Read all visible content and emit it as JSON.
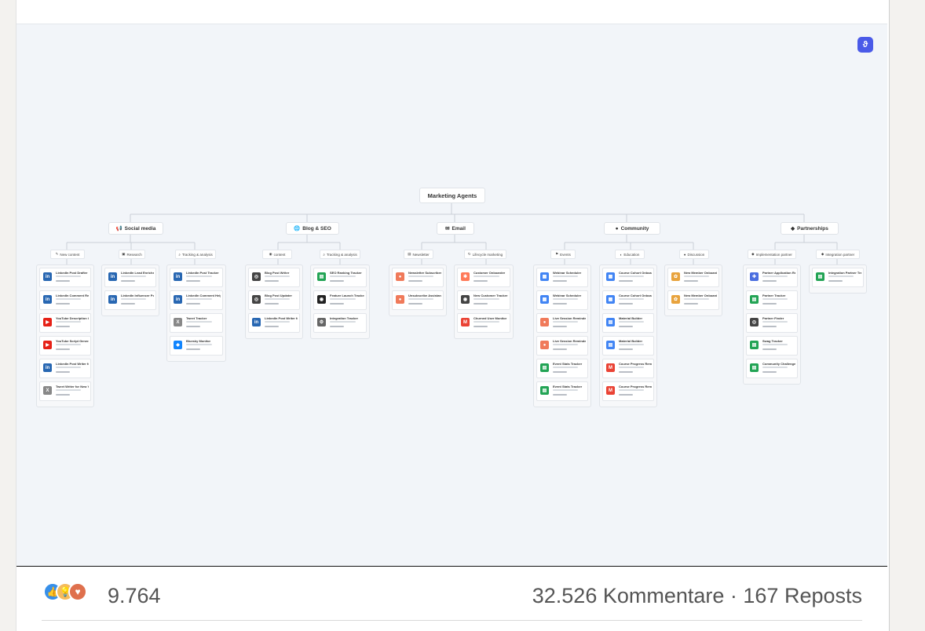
{
  "diagram": {
    "root": "Marketing Agents",
    "categories": [
      {
        "label": "Social media",
        "icon": "megaphone-icon"
      },
      {
        "label": "Blog & SEO",
        "icon": "globe-icon"
      },
      {
        "label": "Email",
        "icon": "mail-icon"
      },
      {
        "label": "Community",
        "icon": "people-icon"
      },
      {
        "label": "Partnerships",
        "icon": "handshake-icon"
      }
    ],
    "subcategories": [
      "New content",
      "Research",
      "Tracking & analysis",
      "content",
      "Tracking & analysis",
      "Newsletter",
      "Lifecycle marketing",
      "Events",
      "Education",
      "Discussion",
      "Implementation partner",
      "Integration partner"
    ],
    "columns": [
      {
        "items": [
          {
            "title": "LinkedIn Post Drafter",
            "color": "#2867b2",
            "glyph": "in"
          },
          {
            "title": "LinkedIn Comment Replier",
            "color": "#2867b2",
            "glyph": "in"
          },
          {
            "title": "YouTube Description Generator",
            "color": "#e62117",
            "glyph": "▶"
          },
          {
            "title": "YouTube Script Generator",
            "color": "#e62117",
            "glyph": "▶"
          },
          {
            "title": "LinkedIn Post Writer for New YouTube Videos",
            "color": "#2867b2",
            "glyph": "in"
          },
          {
            "title": "Tweet Writer for New YouTube Videos",
            "color": "#888888",
            "glyph": "X"
          }
        ]
      },
      {
        "items": [
          {
            "title": "LinkedIn Lead Enricher",
            "color": "#2867b2",
            "glyph": "in"
          },
          {
            "title": "LinkedIn Influencer Post Researcher",
            "color": "#2867b2",
            "glyph": "in"
          }
        ]
      },
      {
        "items": [
          {
            "title": "LinkedIn Post Tracker",
            "color": "#2867b2",
            "glyph": "in"
          },
          {
            "title": "LinkedIn Comment Helper",
            "color": "#2867b2",
            "glyph": "in"
          },
          {
            "title": "Tweet Tracker",
            "color": "#888888",
            "glyph": "X"
          },
          {
            "title": "Bluesky Monitor",
            "color": "#1185fe",
            "glyph": "◆"
          }
        ]
      },
      {
        "items": [
          {
            "title": "Blog Post Writer",
            "color": "#444444",
            "glyph": "◎"
          },
          {
            "title": "Blog Post Updater",
            "color": "#444444",
            "glyph": "◎"
          },
          {
            "title": "LinkedIn Post Writer for New Blog Posts",
            "color": "#2867b2",
            "glyph": "in"
          }
        ]
      },
      {
        "items": [
          {
            "title": "SEO Ranking Tracker",
            "color": "#23a455",
            "glyph": "▤"
          },
          {
            "title": "Feature Launch Tracker",
            "color": "#222222",
            "glyph": "◉"
          },
          {
            "title": "Integration Tracker",
            "color": "#666666",
            "glyph": "⚙"
          }
        ]
      },
      {
        "items": [
          {
            "title": "Newsletter Subscriber",
            "color": "#f07a5a",
            "glyph": "●"
          },
          {
            "title": "Unsubscribe Assistant",
            "color": "#f07a5a",
            "glyph": "●"
          }
        ]
      },
      {
        "items": [
          {
            "title": "Customer Onboarder",
            "color": "#ff7a59",
            "glyph": "✱"
          },
          {
            "title": "New Customer Tracker",
            "color": "#444444",
            "glyph": "◉"
          },
          {
            "title": "Churned User Monitor",
            "color": "#ea4335",
            "glyph": "M"
          }
        ]
      },
      {
        "items": [
          {
            "title": "Webinar Scheduler",
            "color": "#4285f4",
            "glyph": "▦"
          },
          {
            "title": "Webinar Scheduler",
            "color": "#4285f4",
            "glyph": "▦"
          },
          {
            "title": "Live Session Reminder",
            "color": "#f07a5a",
            "glyph": "●"
          },
          {
            "title": "Live Session Reminder",
            "color": "#f07a5a",
            "glyph": "●"
          },
          {
            "title": "Event Stats Tracker",
            "color": "#23a455",
            "glyph": "▤"
          },
          {
            "title": "Event Stats Tracker",
            "color": "#23a455",
            "glyph": "▤"
          }
        ]
      },
      {
        "items": [
          {
            "title": "Course Cohort Onboarder",
            "color": "#4285f4",
            "glyph": "▦"
          },
          {
            "title": "Course Cohort Onboarder",
            "color": "#4285f4",
            "glyph": "▦"
          },
          {
            "title": "Material Builder",
            "color": "#4285f4",
            "glyph": "▤"
          },
          {
            "title": "Material Builder",
            "color": "#4285f4",
            "glyph": "▤"
          },
          {
            "title": "Course Progress Reminders",
            "color": "#ea4335",
            "glyph": "M"
          },
          {
            "title": "Course Progress Reminders",
            "color": "#ea4335",
            "glyph": "M"
          }
        ]
      },
      {
        "items": [
          {
            "title": "New Member Onboarder",
            "color": "#e8a33d",
            "glyph": "✿"
          },
          {
            "title": "New Member Onboarder",
            "color": "#e8a33d",
            "glyph": "✿"
          }
        ]
      },
      {
        "items": [
          {
            "title": "Partner Application Reviewer",
            "color": "#4a6ee0",
            "glyph": "✚"
          },
          {
            "title": "Partner Tracker",
            "color": "#23a455",
            "glyph": "▤"
          },
          {
            "title": "Partner Finder",
            "color": "#444444",
            "glyph": "◎"
          },
          {
            "title": "Swag Tracker",
            "color": "#23a455",
            "glyph": "▤"
          },
          {
            "title": "Community Challenge Tracker",
            "color": "#23a455",
            "glyph": "▤"
          }
        ]
      },
      {
        "items": [
          {
            "title": "Integration Partner Tracker",
            "color": "#23a455",
            "glyph": "▤"
          }
        ]
      }
    ]
  },
  "social": {
    "reaction_count": "9.764",
    "stats": "32.526 Kommentare · 167 Reposts",
    "reactions": [
      {
        "icon": "thumbs-up-icon",
        "glyph": "👍"
      },
      {
        "icon": "lightbulb-icon",
        "glyph": "💡"
      },
      {
        "icon": "heart-icon",
        "glyph": "♥"
      }
    ]
  }
}
